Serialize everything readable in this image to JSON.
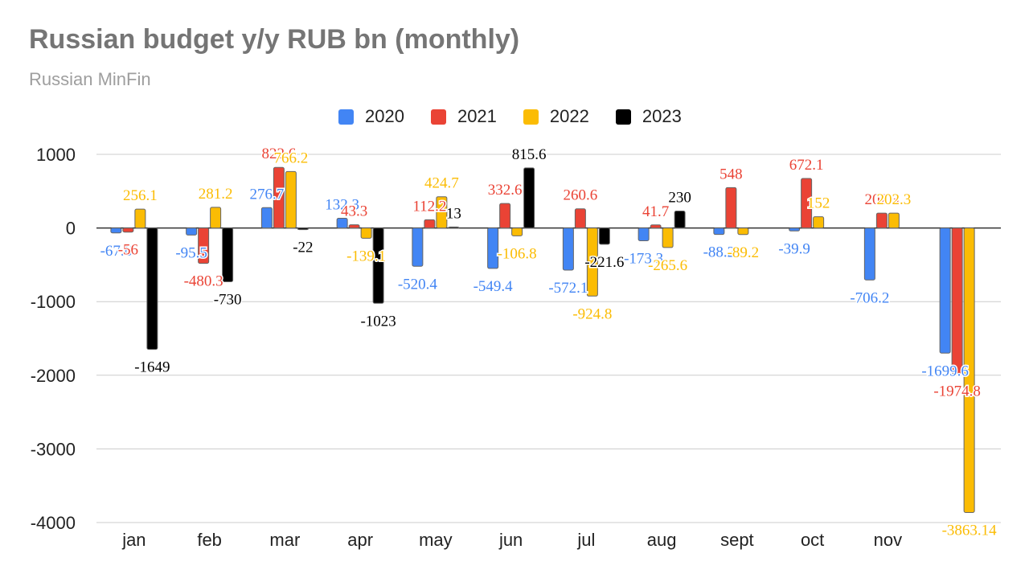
{
  "title": "Russian budget y/y RUB bn (monthly)",
  "subtitle": "Russian MinFin",
  "colors": {
    "2020": "#4285f4",
    "2021": "#ea4335",
    "2022": "#fbbc04",
    "2023": "#000000"
  },
  "chart_data": {
    "type": "bar",
    "title": "Russian budget y/y RUB bn (monthly)",
    "subtitle": "Russian MinFin",
    "legend_position": "top",
    "grid": true,
    "ylim": [
      -4000,
      1000
    ],
    "yticks": [
      "1000",
      "0",
      "-1000",
      "-2000",
      "-3000",
      "-4000"
    ],
    "categories": [
      "jan",
      "feb",
      "mar",
      "apr",
      "may",
      "jun",
      "jul",
      "aug",
      "sept",
      "oct",
      "nov",
      ""
    ],
    "series": [
      {
        "name": "2020",
        "values": [
          -67.6,
          -95.5,
          276.7,
          132.3,
          -520.4,
          -549.4,
          -572.1,
          -173.3,
          -88.2,
          -39.9,
          -706.2,
          -1699.6
        ],
        "labels": [
          "-67.6",
          "-95.5",
          "276.7",
          "132.3",
          "-520.4",
          "-549.4",
          "-572.1",
          "-173.3",
          "-88.2",
          "-39.9",
          "-706.2",
          "-1699.6"
        ]
      },
      {
        "name": "2021",
        "values": [
          -56,
          -480.3,
          822.6,
          43.3,
          112.2,
          332.6,
          260.6,
          41.7,
          548,
          672.1,
          202.3,
          -1974.8
        ],
        "labels": [
          "-56",
          "-480.3",
          "822.6",
          "43.3",
          "112.2",
          "332.6",
          "260.6",
          "41.7",
          "548",
          "672.1",
          "202.3",
          "-1974.8"
        ]
      },
      {
        "name": "2022",
        "values": [
          256.1,
          281.2,
          766.2,
          -139.1,
          424.7,
          -106.8,
          -924.8,
          -265.6,
          -89.2,
          152,
          202.3,
          -3863.14
        ],
        "labels": [
          "256.1",
          "281.2",
          "766.2",
          "-139.1",
          "424.7",
          "-106.8",
          "-924.8",
          "-265.6",
          "-89.2",
          "152",
          "202.3",
          "-3863.14"
        ]
      },
      {
        "name": "2023",
        "values": [
          -1649,
          -730,
          -22,
          -1023,
          13,
          815.6,
          -221.6,
          230,
          null,
          null,
          null,
          null
        ],
        "labels": [
          "-1649",
          "-730",
          "-22",
          "-1023",
          "13",
          "815.6",
          "-221.6",
          "230",
          null,
          null,
          null,
          null
        ]
      }
    ]
  }
}
